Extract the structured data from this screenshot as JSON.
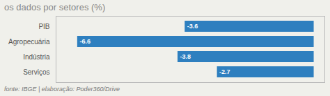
{
  "chart_data": {
    "type": "bar",
    "orientation": "horizontal",
    "title": "os dados por setores (%)",
    "caption": "fonte: IBGE | elaboração: Poder360/Drive",
    "categories": [
      "PIB",
      "Agropecuária",
      "Indústria",
      "Serviços"
    ],
    "values": [
      -3.6,
      -6.6,
      -3.8,
      -2.7
    ],
    "color": "#2e7fbf",
    "xlim": [
      -7.2,
      0.3
    ],
    "data_labels": true,
    "tick_labels": "y",
    "grid": false
  }
}
